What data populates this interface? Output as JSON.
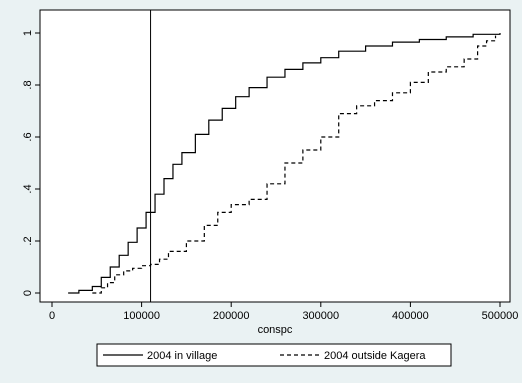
{
  "chart_data": {
    "type": "line",
    "title": "",
    "xlabel": "conspc",
    "ylabel": "",
    "xlim": [
      0,
      500000
    ],
    "ylim": [
      0,
      1
    ],
    "x_ticks": [
      0,
      100000,
      200000,
      300000,
      400000,
      500000
    ],
    "x_tick_labels": [
      "0",
      "100000",
      "200000",
      "300000",
      "400000",
      "500000"
    ],
    "y_ticks": [
      0,
      0.2,
      0.4,
      0.6,
      0.8,
      1
    ],
    "y_tick_labels": [
      "0",
      ".2",
      ".4",
      ".6",
      ".8",
      "1"
    ],
    "grid": false,
    "vertical_reference_line": 110000,
    "legend_placement": "bottom",
    "series": [
      {
        "name": "2004 in village",
        "style": "solid",
        "color": "#000000",
        "x": [
          18000,
          30000,
          45000,
          55000,
          65000,
          75000,
          85000,
          95000,
          105000,
          115000,
          125000,
          135000,
          145000,
          160000,
          175000,
          190000,
          205000,
          220000,
          240000,
          260000,
          280000,
          300000,
          320000,
          350000,
          380000,
          410000,
          440000,
          470000,
          500000
        ],
        "y": [
          0.0,
          0.01,
          0.025,
          0.06,
          0.1,
          0.145,
          0.195,
          0.25,
          0.31,
          0.38,
          0.44,
          0.495,
          0.54,
          0.61,
          0.665,
          0.71,
          0.755,
          0.79,
          0.83,
          0.86,
          0.885,
          0.905,
          0.93,
          0.95,
          0.965,
          0.975,
          0.985,
          0.995,
          1.0
        ]
      },
      {
        "name": "2004 outside Kagera",
        "style": "dashed",
        "color": "#000000",
        "x": [
          45000,
          55000,
          62000,
          70000,
          80000,
          90000,
          100000,
          110000,
          120000,
          130000,
          150000,
          170000,
          185000,
          200000,
          220000,
          240000,
          260000,
          280000,
          300000,
          320000,
          340000,
          360000,
          380000,
          400000,
          420000,
          440000,
          460000,
          475000,
          485000,
          495000
        ],
        "y": [
          0.0,
          0.02,
          0.04,
          0.07,
          0.085,
          0.095,
          0.105,
          0.11,
          0.13,
          0.16,
          0.2,
          0.26,
          0.31,
          0.34,
          0.36,
          0.42,
          0.5,
          0.55,
          0.6,
          0.69,
          0.72,
          0.74,
          0.77,
          0.81,
          0.85,
          0.87,
          0.9,
          0.95,
          0.97,
          0.99
        ]
      }
    ]
  }
}
